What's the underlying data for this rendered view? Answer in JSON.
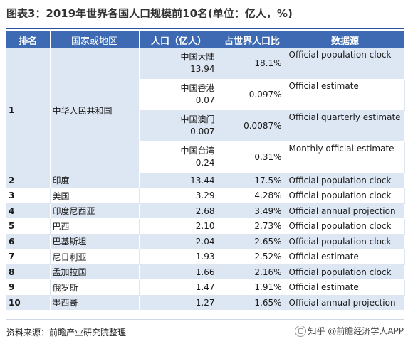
{
  "title": "图表3：2019年世界各国人口规模前10名(单位：亿人，%)",
  "headers": {
    "rank": "排名",
    "country": "国家或地区",
    "population": "人口（亿人）",
    "share": "占世界人口比",
    "source": "数据源"
  },
  "china": {
    "rank": "1",
    "name": "中华人民共和国",
    "regions": [
      {
        "name": "中国大陆",
        "population": "13.94",
        "share": "18.1%",
        "source": "Official population clock"
      },
      {
        "name": "中国香港",
        "population": "0.07",
        "share": "0.097%",
        "source": "Official estimate"
      },
      {
        "name": "中国澳门",
        "population": "0.007",
        "share": "0.0087%",
        "source": "Official quarterly estimate"
      },
      {
        "name": "中国台湾",
        "population": "0.24",
        "share": "0.31%",
        "source": "Monthly official estimate"
      }
    ]
  },
  "rows": [
    {
      "rank": "2",
      "country": "印度",
      "population": "13.44",
      "share": "17.5%",
      "source": "Official population clock"
    },
    {
      "rank": "3",
      "country": "美国",
      "population": "3.29",
      "share": "4.28%",
      "source": "Official population clock"
    },
    {
      "rank": "4",
      "country": "印度尼西亚",
      "population": "2.68",
      "share": "3.49%",
      "source": "Official annual projection"
    },
    {
      "rank": "5",
      "country": "巴西",
      "population": "2.10",
      "share": "2.73%",
      "source": "Official population clock"
    },
    {
      "rank": "6",
      "country": "巴基斯坦",
      "population": "2.04",
      "share": "2.65%",
      "source": "Official population clock"
    },
    {
      "rank": "7",
      "country": "尼日利亚",
      "population": "1.93",
      "share": "2.52%",
      "source": "Official estimate"
    },
    {
      "rank": "8",
      "country": "孟加拉国",
      "population": "1.66",
      "share": "2.16%",
      "source": "Official population clock"
    },
    {
      "rank": "9",
      "country": "俄罗斯",
      "population": "1.47",
      "share": "1.91%",
      "source": "Official estimate"
    },
    {
      "rank": "10",
      "country": "墨西哥",
      "population": "1.27",
      "share": "1.65%",
      "source": "Official annual projection"
    }
  ],
  "footer": {
    "source": "资料来源：前瞻产业研究院整理",
    "brand": "知乎 @前瞻经济学人APP"
  }
}
